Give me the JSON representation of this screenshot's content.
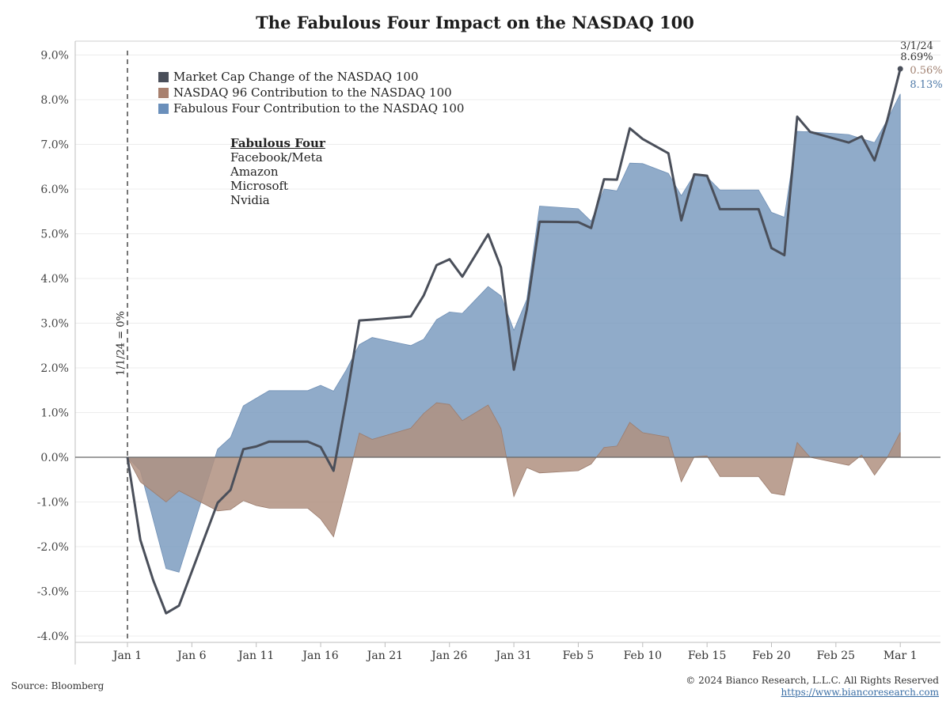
{
  "title": "The Fabulous Four Impact on the NASDAQ 100",
  "legend": {
    "market": "Market Cap Change of the NASDAQ 100",
    "n96": "NASDAQ 96 Contribution to the NASDAQ 100",
    "fab": "Fabulous Four Contribution to the NASDAQ 100"
  },
  "fabulous_four": {
    "heading": "Fabulous Four",
    "members": [
      "Facebook/Meta",
      "Amazon",
      "Microsoft",
      "Nvidia"
    ]
  },
  "vline_label": "1/1/24 = 0%",
  "annotation": {
    "date": "3/1/24",
    "total": "8.69%",
    "n96": "0.56%",
    "fab": "8.13%"
  },
  "source": "Source: Bloomberg",
  "copyright": "© 2024 Bianco Research, L.L.C. All Rights Reserved",
  "website": "https://www.biancoresearch.com",
  "colors": {
    "market": "#4a4f5a",
    "n96": "#b09080",
    "fab": "#7c9cc0",
    "fab_legend": "#6a8fbb",
    "n96_legend": "#a8806e"
  },
  "chart_data": {
    "type": "area",
    "title": "The Fabulous Four Impact on the NASDAQ 100",
    "x_ticks": [
      "Jan 1",
      "Jan 6",
      "Jan 11",
      "Jan 16",
      "Jan 21",
      "Jan 26",
      "Jan 31",
      "Feb 5",
      "Feb 10",
      "Feb 15",
      "Feb 20",
      "Feb 25",
      "Mar 1"
    ],
    "x_tick_days": [
      0,
      5,
      10,
      15,
      20,
      25,
      30,
      35,
      40,
      45,
      50,
      55,
      60
    ],
    "y_ticks": [
      "9.0%",
      "8.0%",
      "7.0%",
      "6.0%",
      "5.0%",
      "4.0%",
      "3.0%",
      "2.0%",
      "1.0%",
      "0.0%",
      "-1.0%",
      "-2.0%",
      "-3.0%",
      "-4.0%"
    ],
    "ylim": [
      -4.0,
      9.0
    ],
    "x_unit": "days since Jan 1",
    "series": [
      {
        "name": "Market Cap Change of the NASDAQ 100",
        "kind": "line",
        "x": [
          0,
          1,
          2,
          3,
          4,
          7,
          8,
          9,
          10,
          11,
          12,
          14,
          15,
          16,
          17,
          18,
          19,
          22,
          23,
          24,
          25,
          26,
          28,
          29,
          30,
          31,
          32,
          35,
          36,
          37,
          38,
          39,
          40,
          42,
          43,
          44,
          45,
          46,
          49,
          50,
          51,
          52,
          53,
          56,
          57,
          58,
          59,
          60
        ],
        "y": [
          0.0,
          -1.85,
          -2.75,
          -3.49,
          -3.32,
          -1.02,
          -0.73,
          0.18,
          0.24,
          0.35,
          0.35,
          0.35,
          0.23,
          -0.3,
          1.3,
          3.06,
          3.08,
          3.15,
          3.62,
          4.3,
          4.43,
          4.04,
          4.99,
          4.25,
          1.96,
          3.3,
          5.27,
          5.26,
          5.13,
          6.22,
          6.21,
          7.36,
          7.12,
          6.8,
          5.3,
          6.33,
          6.3,
          5.55,
          5.55,
          4.68,
          4.52,
          7.62,
          7.28,
          7.04,
          7.18,
          6.64,
          7.55,
          8.69
        ]
      },
      {
        "name": "NASDAQ 96 Contribution to the NASDAQ 100",
        "kind": "area",
        "x": [
          0,
          1,
          3,
          4,
          7,
          8,
          9,
          10,
          11,
          14,
          15,
          16,
          17,
          18,
          19,
          22,
          23,
          24,
          25,
          26,
          28,
          29,
          30,
          31,
          32,
          35,
          36,
          37,
          38,
          39,
          40,
          42,
          43,
          44,
          45,
          46,
          49,
          50,
          51,
          52,
          53,
          56,
          57,
          58,
          59,
          60
        ],
        "y": [
          0.0,
          -0.55,
          -1.0,
          -0.75,
          -1.2,
          -1.17,
          -0.97,
          -1.08,
          -1.14,
          -1.14,
          -1.38,
          -1.78,
          -0.66,
          0.54,
          0.4,
          0.65,
          0.98,
          1.22,
          1.18,
          0.82,
          1.17,
          0.64,
          -0.88,
          -0.23,
          -0.35,
          -0.3,
          -0.15,
          0.22,
          0.25,
          0.78,
          0.55,
          0.45,
          -0.55,
          0.01,
          0.03,
          -0.43,
          -0.43,
          -0.8,
          -0.85,
          0.33,
          0.0,
          -0.18,
          0.05,
          -0.4,
          0.0,
          0.56
        ]
      },
      {
        "name": "Fabulous Four Contribution to the NASDAQ 100",
        "kind": "area",
        "x": [
          0,
          1,
          3,
          4,
          7,
          8,
          9,
          10,
          11,
          14,
          15,
          16,
          17,
          18,
          19,
          22,
          23,
          24,
          25,
          26,
          28,
          29,
          30,
          31,
          32,
          35,
          36,
          37,
          38,
          39,
          40,
          42,
          43,
          44,
          45,
          46,
          49,
          50,
          51,
          52,
          53,
          56,
          57,
          58,
          59,
          60
        ],
        "y": [
          0.0,
          -0.3,
          -2.49,
          -2.57,
          0.18,
          0.44,
          1.15,
          1.32,
          1.49,
          1.49,
          1.61,
          1.48,
          1.96,
          2.52,
          2.68,
          2.5,
          2.64,
          3.08,
          3.25,
          3.22,
          3.82,
          3.61,
          2.84,
          3.53,
          5.62,
          5.56,
          5.28,
          6.0,
          5.96,
          6.58,
          6.57,
          6.35,
          5.85,
          6.32,
          6.27,
          5.98,
          5.98,
          5.48,
          5.37,
          7.29,
          7.28,
          7.22,
          7.13,
          7.04,
          7.55,
          8.13
        ]
      }
    ],
    "annotations": [
      "1/1/24 = 0%",
      "3/1/24",
      "8.69%",
      "0.56%",
      "8.13%"
    ],
    "grid": true,
    "legend_position": "top-left"
  }
}
